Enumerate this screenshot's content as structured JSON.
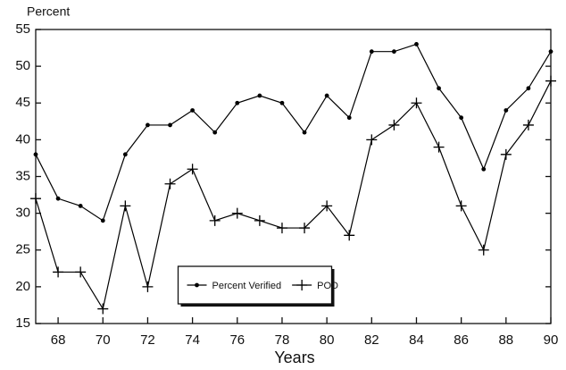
{
  "chart_data": {
    "type": "line",
    "ylabel": "Percent",
    "xlabel": "Years",
    "x": [
      67,
      68,
      69,
      70,
      71,
      72,
      73,
      74,
      75,
      76,
      77,
      78,
      79,
      80,
      81,
      82,
      83,
      84,
      85,
      86,
      87,
      88,
      89,
      90
    ],
    "series": [
      {
        "name": "Percent Verified",
        "color": "#000000",
        "marker": "circle",
        "values": [
          38,
          32,
          31,
          29,
          38,
          42,
          42,
          44,
          41,
          45,
          46,
          45,
          41,
          46,
          43,
          52,
          52,
          53,
          47,
          43,
          36,
          44,
          47,
          52
        ]
      },
      {
        "name": "POD",
        "color": "#000000",
        "marker": "plus",
        "values": [
          32,
          22,
          22,
          17,
          31,
          20,
          34,
          36,
          29,
          30,
          29,
          28,
          28,
          31,
          27,
          40,
          42,
          45,
          39,
          31,
          25,
          38,
          42,
          48
        ]
      }
    ],
    "xlim": [
      67,
      90
    ],
    "xticks": [
      68,
      70,
      72,
      74,
      76,
      78,
      80,
      82,
      84,
      86,
      88,
      90
    ],
    "ylim": [
      15,
      55
    ],
    "yticks": [
      15,
      20,
      25,
      30,
      35,
      40,
      45,
      50,
      55
    ],
    "legend": "lower center"
  }
}
